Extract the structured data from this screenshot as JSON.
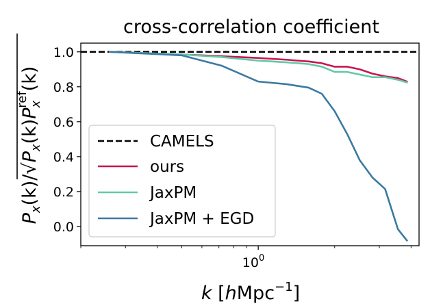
{
  "chart_data": {
    "type": "line",
    "title": "cross-correlation coefficient",
    "xlabel": {
      "main": "k",
      "unit_pre": "[",
      "unit_h": "h",
      "unit_mid": "Mpc",
      "unit_exp": "−1",
      "unit_post": "]"
    },
    "ylabel": {
      "p1": "P",
      "p1_sub": "x",
      "k1": "(k)/",
      "p2": "P",
      "p2_sub": "x",
      "k2": "(k)",
      "p3": "P",
      "p3_sub": "x",
      "p3_sup": "ref",
      "k3": "(k)"
    },
    "xscale": "log",
    "xlim": [
      0.2,
      4.3
    ],
    "ylim": [
      -0.11,
      1.05
    ],
    "yticks": [
      0.0,
      0.2,
      0.4,
      0.6,
      0.8,
      1.0
    ],
    "ytick_labels": [
      "0.0",
      "0.2",
      "0.4",
      "0.6",
      "0.8",
      "1.0"
    ],
    "xtick_major": {
      "value": 1.0,
      "base": "10",
      "exp": "0"
    },
    "x": [
      0.26,
      0.5,
      0.72,
      1.0,
      1.29,
      1.58,
      1.78,
      2.0,
      2.24,
      2.51,
      2.82,
      3.16,
      3.55,
      3.85
    ],
    "series": [
      {
        "name": "CAMELS",
        "color": "#000000",
        "style": "dashed",
        "values": [
          1.0,
          1.0,
          1.0,
          1.0,
          1.0,
          1.0,
          1.0,
          1.0,
          1.0,
          1.0,
          1.0,
          1.0,
          1.0,
          1.0
        ]
      },
      {
        "name": "ours",
        "color": "#c8174f",
        "style": "solid",
        "values": [
          1.0,
          0.985,
          0.975,
          0.965,
          0.955,
          0.945,
          0.935,
          0.915,
          0.915,
          0.9,
          0.875,
          0.86,
          0.85,
          0.83
        ]
      },
      {
        "name": "JaxPM",
        "color": "#63c9a8",
        "style": "solid",
        "values": [
          1.0,
          0.985,
          0.97,
          0.95,
          0.94,
          0.93,
          0.915,
          0.885,
          0.885,
          0.87,
          0.855,
          0.855,
          0.84,
          0.825
        ]
      },
      {
        "name": "JaxPM + EGD",
        "color": "#3a7aa0",
        "style": "solid",
        "values": [
          1.0,
          0.98,
          0.92,
          0.83,
          0.815,
          0.795,
          0.76,
          0.66,
          0.53,
          0.38,
          0.28,
          0.215,
          -0.015,
          -0.08
        ]
      }
    ],
    "legend": {
      "location": "center-left",
      "entries": [
        "CAMELS",
        "ours",
        "JaxPM",
        "JaxPM + EGD"
      ]
    },
    "grid": false
  }
}
